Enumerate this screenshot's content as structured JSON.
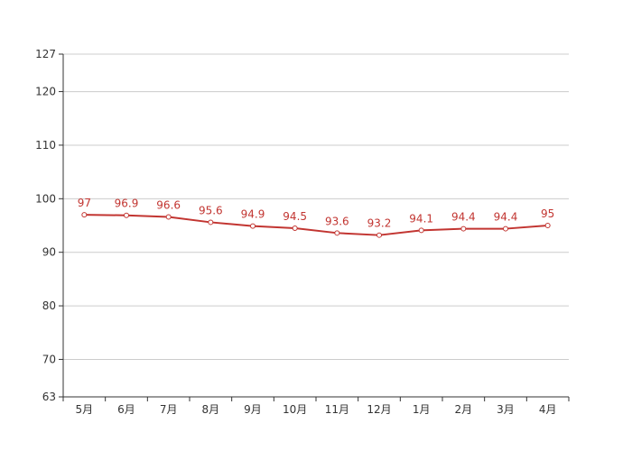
{
  "chart_data": {
    "type": "line",
    "title": "",
    "xlabel": "",
    "ylabel": "",
    "categories": [
      "5月",
      "6月",
      "7月",
      "8月",
      "9月",
      "10月",
      "11月",
      "12月",
      "1月",
      "2月",
      "3月",
      "4月"
    ],
    "series": [
      {
        "values": [
          97,
          96.9,
          96.6,
          95.6,
          94.9,
          94.5,
          93.6,
          93.2,
          94.1,
          94.4,
          94.4,
          95
        ],
        "color": "#c23531"
      }
    ],
    "ylim": [
      63,
      127
    ],
    "yticks": [
      63,
      70,
      80,
      90,
      100,
      110,
      120,
      127
    ],
    "grid": true,
    "legend": "none",
    "data_labels": true
  }
}
